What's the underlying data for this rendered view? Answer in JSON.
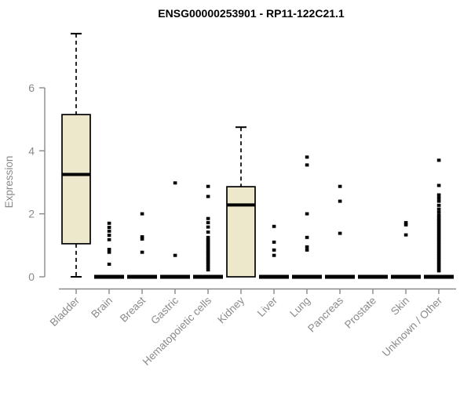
{
  "chart_data": {
    "type": "boxplot",
    "title": "ENSG00000253901 - RP11-122C21.1",
    "ylabel": "Expression",
    "xlabel": "",
    "yticks": [
      0,
      2,
      4,
      6
    ],
    "ylim": [
      0,
      7.9
    ],
    "grid": false,
    "legend": "none",
    "categories": [
      "Bladder",
      "Brain",
      "Breast",
      "Gastric",
      "Hematopoietic cells",
      "Kidney",
      "Liver",
      "Lung",
      "Pancreas",
      "Prostate",
      "Skin",
      "Unknown / Other"
    ],
    "boxes": [
      {
        "category": "Bladder",
        "low": 0,
        "q1": 1.05,
        "median": 3.25,
        "q3": 5.15,
        "high": 7.72,
        "outliers": []
      },
      {
        "category": "Brain",
        "low": 0,
        "q1": 0,
        "median": 0,
        "q3": 0,
        "high": 0,
        "outliers": [
          1.7,
          1.57,
          1.45,
          1.32,
          1.18,
          0.87,
          0.78,
          0.4
        ]
      },
      {
        "category": "Breast",
        "low": 0,
        "q1": 0,
        "median": 0,
        "q3": 0,
        "high": 0,
        "outliers": [
          2.0,
          1.27,
          1.2,
          0.78
        ]
      },
      {
        "category": "Gastric",
        "low": 0,
        "q1": 0,
        "median": 0,
        "q3": 0,
        "high": 0,
        "outliers": [
          2.98,
          0.68
        ]
      },
      {
        "category": "Hematopoietic cells",
        "low": 0,
        "q1": 0,
        "median": 0,
        "q3": 0,
        "high": 0,
        "outliers": [
          2.87,
          2.55,
          1.85,
          1.72,
          1.58,
          1.42,
          1.25,
          1.18,
          1.12,
          1.05,
          0.98,
          0.92,
          0.85,
          0.78,
          0.72,
          0.65,
          0.58,
          0.52,
          0.45,
          0.38,
          0.3,
          0.22
        ]
      },
      {
        "category": "Kidney",
        "low": 0,
        "q1": 0,
        "median": 2.28,
        "q3": 2.86,
        "high": 4.75,
        "outliers": []
      },
      {
        "category": "Liver",
        "low": 0,
        "q1": 0,
        "median": 0,
        "q3": 0,
        "high": 0,
        "outliers": [
          1.6,
          1.1,
          0.85,
          0.68
        ]
      },
      {
        "category": "Lung",
        "low": 0,
        "q1": 0,
        "median": 0,
        "q3": 0,
        "high": 0,
        "outliers": [
          3.8,
          3.55,
          2.0,
          1.25,
          0.95,
          0.85
        ]
      },
      {
        "category": "Pancreas",
        "low": 0,
        "q1": 0,
        "median": 0,
        "q3": 0,
        "high": 0,
        "outliers": [
          2.87,
          2.4,
          1.38
        ]
      },
      {
        "category": "Prostate",
        "low": 0,
        "q1": 0,
        "median": 0,
        "q3": 0,
        "high": 0,
        "outliers": []
      },
      {
        "category": "Skin",
        "low": 0,
        "q1": 0,
        "median": 0,
        "q3": 0,
        "high": 0,
        "outliers": [
          1.72,
          1.65,
          1.33
        ]
      },
      {
        "category": "Unknown / Other",
        "low": 0,
        "q1": 0,
        "median": 0,
        "q3": 0,
        "high": 0,
        "outliers": [
          3.7,
          2.9,
          2.6,
          2.5,
          2.4,
          2.27,
          2.15,
          2.05,
          1.95,
          1.87,
          1.8,
          1.73,
          1.66,
          1.59,
          1.52,
          1.45,
          1.38,
          1.31,
          1.24,
          1.17,
          1.1,
          1.03,
          0.96,
          0.89,
          0.82,
          0.75,
          0.68,
          0.61,
          0.54,
          0.47,
          0.4,
          0.33,
          0.26,
          0.19
        ]
      }
    ],
    "colors": {
      "box_fill": "#ede7cc",
      "box_stroke": "#000000",
      "median": "#000000",
      "whisker": "#000000",
      "outlier": "#000000",
      "axis": "#8a8a8a",
      "tick_label": "#8a8a8a",
      "title": "#000000",
      "background": "#ffffff"
    }
  }
}
